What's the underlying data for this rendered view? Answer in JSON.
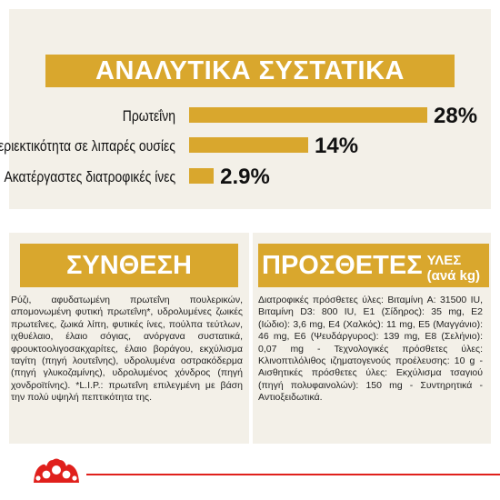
{
  "analysis": {
    "title": "ΑΝΑΛΥΤΙΚΑ ΣΥΣΤΑΤΙΚΑ",
    "rows": [
      {
        "label": "Πρωτεΐνη",
        "value": "28%",
        "level": 28
      },
      {
        "label": "Περιεκτικότητα σε λιπαρές ουσίες",
        "value": "14%",
        "level": 14
      },
      {
        "label": "Ακατέργαστες διατροφικές ίνες",
        "value": "2.9%",
        "level": 2.9
      }
    ]
  },
  "composition": {
    "title": "ΣΥΝΘΕΣΗ",
    "text": "Ρύζι, αφυδατωμένη πρωτεΐνη πουλερικών, απομονωμένη φυτική πρωτεΐνη*, υδρολυμένες ζωικές πρωτεΐνες, ζωικά λίπη, φυτικές ίνες, πούλπα τεύτλων, ιχθυέλαιο, έλαιο σόγιας, ανόργανα συστατικά, φρουκτοολιγοσακχαρίτες, έλαιο βοράγου, εκχύλισμα ταγίτη (πηγή λουτεΐνης), υδρολυμένα οστρακόδερμα (πηγή γλυκοζαμίνης), υδρολυμένος χόνδρος (πηγή χονδροϊτίνης). *L.I.P.: πρωτεΐνη επιλεγμένη με βάση την πολύ υψηλή πεπτικότητα της."
  },
  "additives": {
    "title": "ΠΡΟΣΘΕΤΕΣ",
    "subtitle": "ΥΛΕΣ (ανά kg)",
    "text": "Διατροφικές πρόσθετες ύλες: Βιταμίνη A: 31500 IU, Βιταμίνη D3: 800 IU, E1 (Σίδηρος): 35 mg, E2 (Ιώδιο): 3,6 mg, E4 (Χαλκός): 11 mg, E5 (Μαγγάνιο): 46 mg, E6 (Ψευδάργυρος): 139 mg, E8 (Σελήνιο): 0,07 mg - Τεχνολογικές πρόσθετες ύλες: Κλινοπτιλόλιθος ιζηματογενούς προέλευσης: 10 g - Αισθητικές πρόσθετες ύλες: Εκχύλισμα τσαγιού (πηγή πολυφαινολών): 150 mg - Συντηρητικά - Αντιοξειδωτικά."
  },
  "colors": {
    "accent": "#d9a72d",
    "panel": "#f3f0e8",
    "brand_red": "#e0201c"
  },
  "icons": {
    "logo": "royal-canin-crown-logo-icon"
  }
}
